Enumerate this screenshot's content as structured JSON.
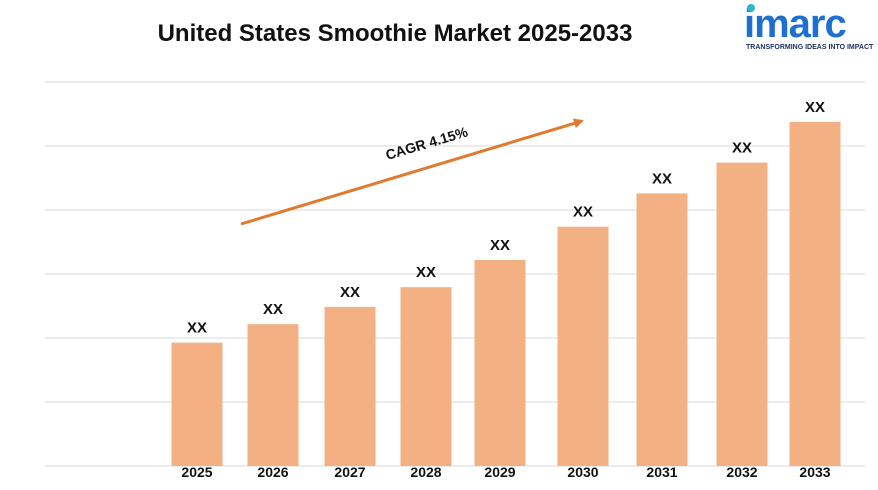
{
  "title": "United States Smoothie Market 2025-2033",
  "logo": {
    "name": "imarc",
    "tagline": "TRANSFORMING IDEAS INTO IMPACT"
  },
  "colors": {
    "bar": "#F3B083",
    "arrow": "#E07A2E",
    "grid": "#d9d9d9",
    "logo_blue": "#1F6FD1",
    "logo_teal": "#2BB7C9"
  },
  "chart_data": {
    "type": "bar",
    "title": "United States Smoothie Market 2025-2033",
    "categories": [
      "2025",
      "2026",
      "2027",
      "2028",
      "2029",
      "2030",
      "2031",
      "2032",
      "2033"
    ],
    "values": [
      100,
      115,
      129,
      145,
      167,
      194,
      221,
      246,
      279
    ],
    "data_labels": [
      "XX",
      "XX",
      "XX",
      "XX",
      "XX",
      "XX",
      "XX",
      "XX",
      "XX"
    ],
    "ylim": [
      0,
      300
    ],
    "grid": true,
    "annotation": {
      "text": "CAGR  4.15%",
      "type": "trend-arrow"
    }
  }
}
